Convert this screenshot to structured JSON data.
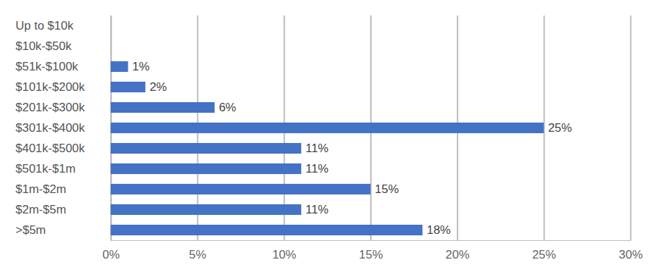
{
  "chart_data": {
    "type": "bar",
    "orientation": "horizontal",
    "categories": [
      "Up to $10k",
      "$10k-$50k",
      "$51k-$100k",
      "$101k-$200k",
      "$201k-$300k",
      "$301k-$400k",
      "$401k-$500k",
      "$501k-$1m",
      "$1m-$2m",
      "$2m-$5m",
      ">$5m"
    ],
    "values": [
      null,
      null,
      1,
      2,
      6,
      25,
      11,
      11,
      15,
      11,
      18
    ],
    "value_labels": [
      null,
      null,
      "1%",
      "2%",
      "6%",
      "25%",
      "11%",
      "11%",
      "15%",
      "11%",
      "18%"
    ],
    "color": "#4472c4",
    "xlim": [
      0,
      30
    ],
    "xticks": [
      {
        "value": 0,
        "label": "0%"
      },
      {
        "value": 5,
        "label": "5%"
      },
      {
        "value": 10,
        "label": "10%"
      },
      {
        "value": 15,
        "label": "15%"
      },
      {
        "value": 20,
        "label": "20%"
      },
      {
        "value": 25,
        "label": "25%"
      },
      {
        "value": 30,
        "label": "30%"
      }
    ],
    "grid": true,
    "data_labels": true
  }
}
